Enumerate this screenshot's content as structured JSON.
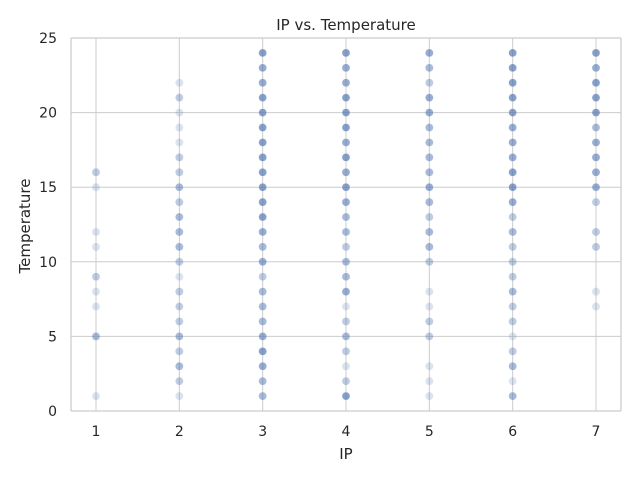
{
  "chart_data": {
    "type": "scatter",
    "title": "IP vs. Temperature",
    "xlabel": "IP",
    "ylabel": "Temperature",
    "xlim": [
      0.7,
      7.3
    ],
    "ylim": [
      0,
      25
    ],
    "xticks": [
      1,
      2,
      3,
      4,
      5,
      6,
      7
    ],
    "yticks": [
      0,
      5,
      10,
      15,
      20,
      25
    ],
    "grid": true,
    "point_color": "#4c72b0",
    "points": [
      {
        "x": 1,
        "y": 1,
        "count": 1
      },
      {
        "x": 1,
        "y": 5,
        "count": 3
      },
      {
        "x": 1,
        "y": 7,
        "count": 1
      },
      {
        "x": 1,
        "y": 8,
        "count": 1
      },
      {
        "x": 1,
        "y": 9,
        "count": 2
      },
      {
        "x": 1,
        "y": 11,
        "count": 1
      },
      {
        "x": 1,
        "y": 12,
        "count": 1
      },
      {
        "x": 1,
        "y": 15,
        "count": 1
      },
      {
        "x": 1,
        "y": 16,
        "count": 2
      },
      {
        "x": 2,
        "y": 1,
        "count": 1
      },
      {
        "x": 2,
        "y": 2,
        "count": 2
      },
      {
        "x": 2,
        "y": 3,
        "count": 3
      },
      {
        "x": 2,
        "y": 4,
        "count": 2
      },
      {
        "x": 2,
        "y": 5,
        "count": 3
      },
      {
        "x": 2,
        "y": 6,
        "count": 2
      },
      {
        "x": 2,
        "y": 7,
        "count": 2
      },
      {
        "x": 2,
        "y": 8,
        "count": 2
      },
      {
        "x": 2,
        "y": 9,
        "count": 1
      },
      {
        "x": 2,
        "y": 10,
        "count": 2
      },
      {
        "x": 2,
        "y": 11,
        "count": 3
      },
      {
        "x": 2,
        "y": 12,
        "count": 3
      },
      {
        "x": 2,
        "y": 13,
        "count": 3
      },
      {
        "x": 2,
        "y": 14,
        "count": 2
      },
      {
        "x": 2,
        "y": 15,
        "count": 3
      },
      {
        "x": 2,
        "y": 16,
        "count": 2
      },
      {
        "x": 2,
        "y": 17,
        "count": 2
      },
      {
        "x": 2,
        "y": 18,
        "count": 1
      },
      {
        "x": 2,
        "y": 19,
        "count": 1
      },
      {
        "x": 2,
        "y": 20,
        "count": 1
      },
      {
        "x": 2,
        "y": 21,
        "count": 2
      },
      {
        "x": 2,
        "y": 22,
        "count": 1
      },
      {
        "x": 3,
        "y": 1,
        "count": 3
      },
      {
        "x": 3,
        "y": 2,
        "count": 3
      },
      {
        "x": 3,
        "y": 3,
        "count": 4
      },
      {
        "x": 3,
        "y": 4,
        "count": 5
      },
      {
        "x": 3,
        "y": 5,
        "count": 4
      },
      {
        "x": 3,
        "y": 6,
        "count": 3
      },
      {
        "x": 3,
        "y": 7,
        "count": 3
      },
      {
        "x": 3,
        "y": 8,
        "count": 3
      },
      {
        "x": 3,
        "y": 9,
        "count": 2
      },
      {
        "x": 3,
        "y": 10,
        "count": 4
      },
      {
        "x": 3,
        "y": 11,
        "count": 3
      },
      {
        "x": 3,
        "y": 12,
        "count": 4
      },
      {
        "x": 3,
        "y": 13,
        "count": 5
      },
      {
        "x": 3,
        "y": 14,
        "count": 5
      },
      {
        "x": 3,
        "y": 15,
        "count": 5
      },
      {
        "x": 3,
        "y": 16,
        "count": 5
      },
      {
        "x": 3,
        "y": 17,
        "count": 5
      },
      {
        "x": 3,
        "y": 18,
        "count": 5
      },
      {
        "x": 3,
        "y": 19,
        "count": 5
      },
      {
        "x": 3,
        "y": 20,
        "count": 5
      },
      {
        "x": 3,
        "y": 21,
        "count": 5
      },
      {
        "x": 3,
        "y": 22,
        "count": 4
      },
      {
        "x": 3,
        "y": 23,
        "count": 4
      },
      {
        "x": 3,
        "y": 24,
        "count": 5
      },
      {
        "x": 4,
        "y": 1,
        "count": 5
      },
      {
        "x": 4,
        "y": 2,
        "count": 2
      },
      {
        "x": 4,
        "y": 3,
        "count": 1
      },
      {
        "x": 4,
        "y": 4,
        "count": 2
      },
      {
        "x": 4,
        "y": 5,
        "count": 3
      },
      {
        "x": 4,
        "y": 6,
        "count": 2
      },
      {
        "x": 4,
        "y": 7,
        "count": 1
      },
      {
        "x": 4,
        "y": 8,
        "count": 4
      },
      {
        "x": 4,
        "y": 9,
        "count": 3
      },
      {
        "x": 4,
        "y": 10,
        "count": 3
      },
      {
        "x": 4,
        "y": 11,
        "count": 2
      },
      {
        "x": 4,
        "y": 12,
        "count": 3
      },
      {
        "x": 4,
        "y": 13,
        "count": 3
      },
      {
        "x": 4,
        "y": 14,
        "count": 4
      },
      {
        "x": 4,
        "y": 15,
        "count": 5
      },
      {
        "x": 4,
        "y": 16,
        "count": 4
      },
      {
        "x": 4,
        "y": 17,
        "count": 5
      },
      {
        "x": 4,
        "y": 18,
        "count": 4
      },
      {
        "x": 4,
        "y": 19,
        "count": 5
      },
      {
        "x": 4,
        "y": 20,
        "count": 5
      },
      {
        "x": 4,
        "y": 21,
        "count": 5
      },
      {
        "x": 4,
        "y": 22,
        "count": 4
      },
      {
        "x": 4,
        "y": 23,
        "count": 4
      },
      {
        "x": 4,
        "y": 24,
        "count": 5
      },
      {
        "x": 5,
        "y": 1,
        "count": 1
      },
      {
        "x": 5,
        "y": 2,
        "count": 1
      },
      {
        "x": 5,
        "y": 3,
        "count": 1
      },
      {
        "x": 5,
        "y": 5,
        "count": 2
      },
      {
        "x": 5,
        "y": 6,
        "count": 2
      },
      {
        "x": 5,
        "y": 7,
        "count": 1
      },
      {
        "x": 5,
        "y": 8,
        "count": 1
      },
      {
        "x": 5,
        "y": 10,
        "count": 2
      },
      {
        "x": 5,
        "y": 11,
        "count": 3
      },
      {
        "x": 5,
        "y": 12,
        "count": 3
      },
      {
        "x": 5,
        "y": 13,
        "count": 2
      },
      {
        "x": 5,
        "y": 14,
        "count": 3
      },
      {
        "x": 5,
        "y": 15,
        "count": 4
      },
      {
        "x": 5,
        "y": 16,
        "count": 3
      },
      {
        "x": 5,
        "y": 17,
        "count": 3
      },
      {
        "x": 5,
        "y": 18,
        "count": 3
      },
      {
        "x": 5,
        "y": 19,
        "count": 3
      },
      {
        "x": 5,
        "y": 20,
        "count": 4
      },
      {
        "x": 5,
        "y": 21,
        "count": 4
      },
      {
        "x": 5,
        "y": 22,
        "count": 2
      },
      {
        "x": 5,
        "y": 23,
        "count": 3
      },
      {
        "x": 5,
        "y": 24,
        "count": 4
      },
      {
        "x": 6,
        "y": 1,
        "count": 3
      },
      {
        "x": 6,
        "y": 2,
        "count": 1
      },
      {
        "x": 6,
        "y": 3,
        "count": 3
      },
      {
        "x": 6,
        "y": 4,
        "count": 2
      },
      {
        "x": 6,
        "y": 5,
        "count": 1
      },
      {
        "x": 6,
        "y": 6,
        "count": 2
      },
      {
        "x": 6,
        "y": 7,
        "count": 2
      },
      {
        "x": 6,
        "y": 8,
        "count": 3
      },
      {
        "x": 6,
        "y": 9,
        "count": 2
      },
      {
        "x": 6,
        "y": 10,
        "count": 2
      },
      {
        "x": 6,
        "y": 11,
        "count": 2
      },
      {
        "x": 6,
        "y": 12,
        "count": 3
      },
      {
        "x": 6,
        "y": 13,
        "count": 2
      },
      {
        "x": 6,
        "y": 14,
        "count": 4
      },
      {
        "x": 6,
        "y": 15,
        "count": 5
      },
      {
        "x": 6,
        "y": 16,
        "count": 5
      },
      {
        "x": 6,
        "y": 17,
        "count": 4
      },
      {
        "x": 6,
        "y": 18,
        "count": 4
      },
      {
        "x": 6,
        "y": 19,
        "count": 4
      },
      {
        "x": 6,
        "y": 20,
        "count": 5
      },
      {
        "x": 6,
        "y": 21,
        "count": 5
      },
      {
        "x": 6,
        "y": 22,
        "count": 5
      },
      {
        "x": 6,
        "y": 23,
        "count": 5
      },
      {
        "x": 6,
        "y": 24,
        "count": 5
      },
      {
        "x": 7,
        "y": 7,
        "count": 1
      },
      {
        "x": 7,
        "y": 8,
        "count": 1
      },
      {
        "x": 7,
        "y": 11,
        "count": 2
      },
      {
        "x": 7,
        "y": 12,
        "count": 2
      },
      {
        "x": 7,
        "y": 14,
        "count": 2
      },
      {
        "x": 7,
        "y": 15,
        "count": 4
      },
      {
        "x": 7,
        "y": 16,
        "count": 4
      },
      {
        "x": 7,
        "y": 17,
        "count": 4
      },
      {
        "x": 7,
        "y": 18,
        "count": 4
      },
      {
        "x": 7,
        "y": 19,
        "count": 3
      },
      {
        "x": 7,
        "y": 20,
        "count": 5
      },
      {
        "x": 7,
        "y": 21,
        "count": 5
      },
      {
        "x": 7,
        "y": 22,
        "count": 5
      },
      {
        "x": 7,
        "y": 23,
        "count": 4
      },
      {
        "x": 7,
        "y": 24,
        "count": 5
      }
    ]
  }
}
